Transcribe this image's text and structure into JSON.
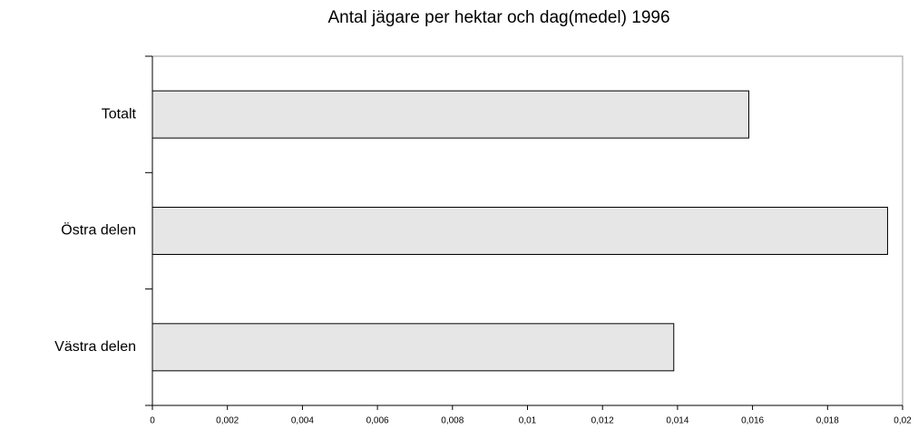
{
  "chart_data": {
    "type": "bar",
    "orientation": "horizontal",
    "title": "Antal jägare per hektar och dag(medel) 1996",
    "categories": [
      "Totalt",
      "Östra delen",
      "Västra delen"
    ],
    "values": [
      0.0159,
      0.0196,
      0.0139
    ],
    "color": "#e6e6e6",
    "xlim": [
      0,
      0.02
    ],
    "xticks": [
      0,
      {
        "value": 0.002,
        "label": "0,002"
      },
      {
        "value": 0.004,
        "label": "0,004"
      },
      {
        "value": 0.006,
        "label": "0,006"
      },
      {
        "value": 0.008,
        "label": "0,008"
      },
      {
        "value": 0.01,
        "label": "0,01"
      },
      {
        "value": 0.012,
        "label": "0,012"
      },
      {
        "value": 0.014,
        "label": "0,014"
      },
      {
        "value": 0.016,
        "label": "0,016"
      },
      {
        "value": 0.018,
        "label": "0,018"
      },
      {
        "value": 0.02,
        "label": "0,02"
      }
    ],
    "grid": false
  }
}
